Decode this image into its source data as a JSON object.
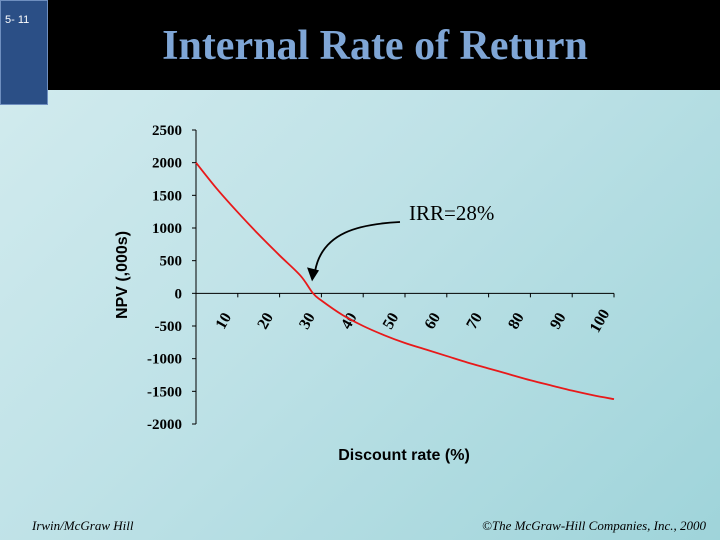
{
  "slide": {
    "number": "5- 11",
    "title": "Internal Rate of Return"
  },
  "footer": {
    "left": "Irwin/McGraw Hill",
    "right": "©The McGraw-Hill Companies, Inc., 2000"
  },
  "chart_data": {
    "type": "line",
    "title": "",
    "xlabel": "Discount rate (%)",
    "ylabel": "NPV (,000s)",
    "xlim": [
      0,
      100
    ],
    "ylim": [
      -2000,
      2500
    ],
    "x_ticks": [
      "10",
      "20",
      "30",
      "40",
      "50",
      "60",
      "70",
      "80",
      "90",
      "100"
    ],
    "y_ticks": [
      "2500",
      "2000",
      "1500",
      "1000",
      "500",
      "0",
      "-500",
      "-1000",
      "-1500",
      "-2000"
    ],
    "series": [
      {
        "color": "#e8191a",
        "x": [
          0,
          5,
          10,
          15,
          20,
          25,
          28,
          30,
          35,
          40,
          45,
          50,
          55,
          60,
          65,
          70,
          75,
          80,
          85,
          90,
          95,
          100
        ],
        "y": [
          2000,
          1600,
          1240,
          900,
          580,
          270,
          0,
          -110,
          -330,
          -500,
          -640,
          -760,
          -860,
          -960,
          -1060,
          -1150,
          -1240,
          -1330,
          -1410,
          -1490,
          -1560,
          -1620
        ]
      }
    ],
    "annotation": {
      "text": "IRR=28%",
      "x": 28,
      "y": 0
    }
  }
}
